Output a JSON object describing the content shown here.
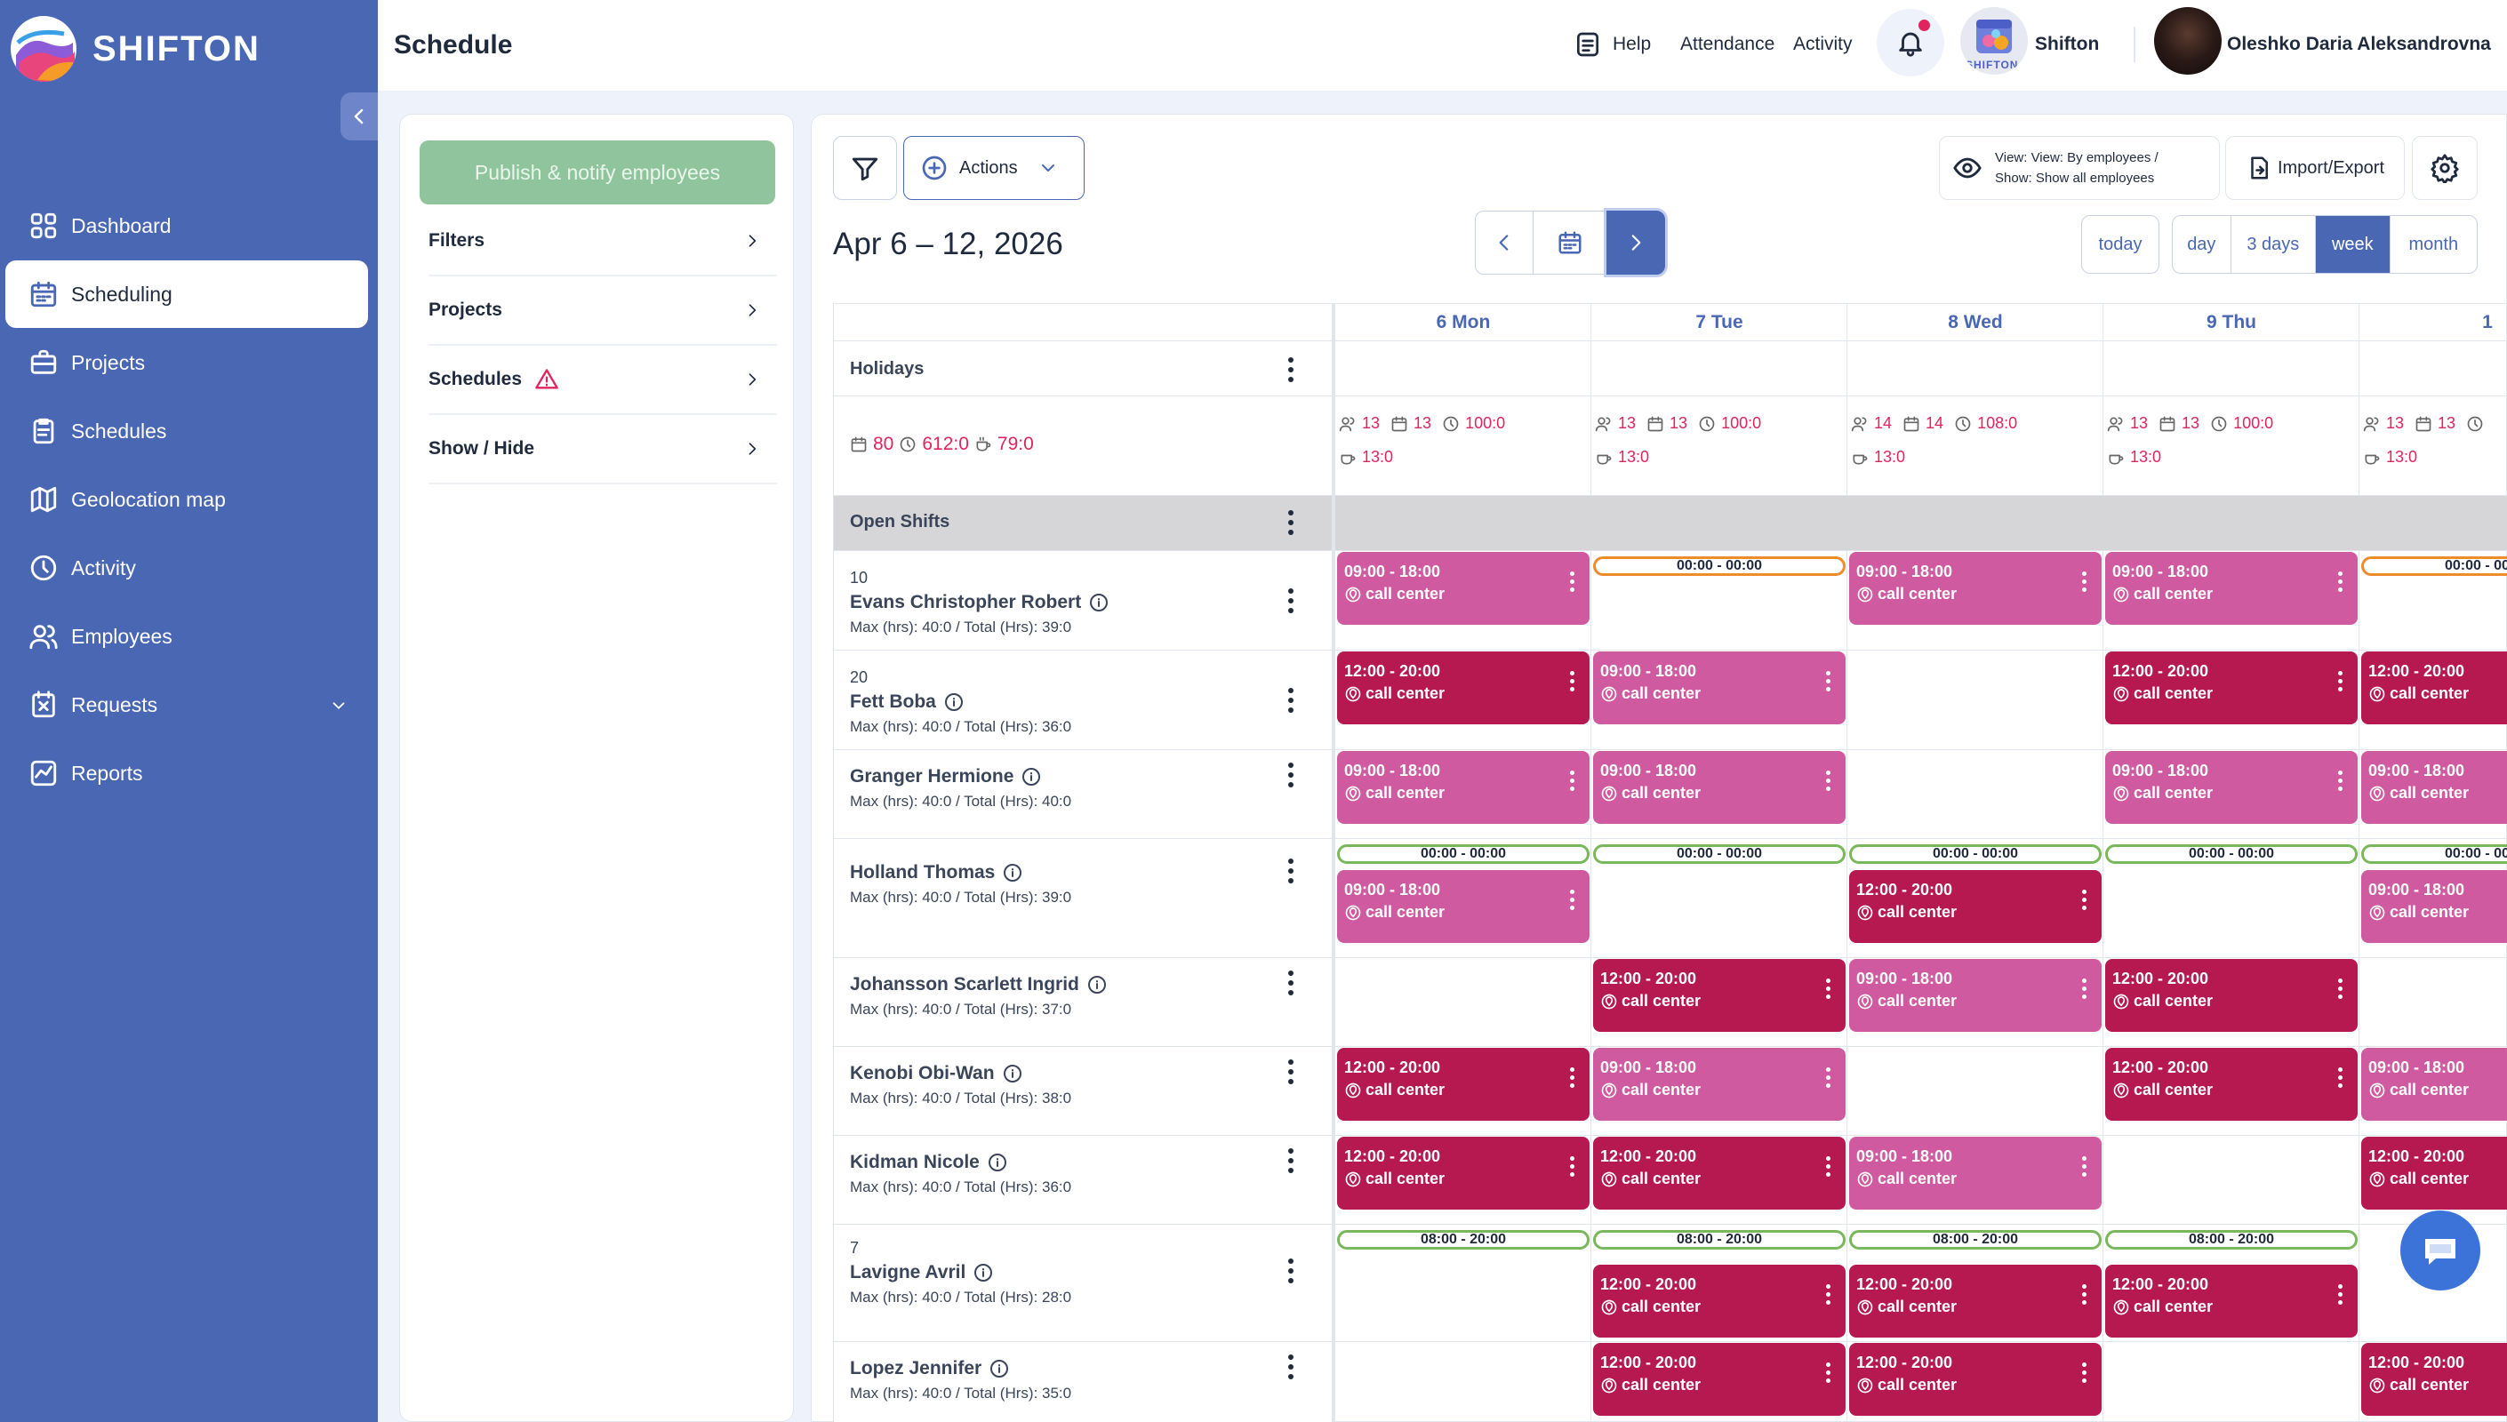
{
  "app": {
    "brand": "SHIFTON",
    "page_title": "Schedule"
  },
  "header": {
    "help": "Help",
    "attendance": "Attendance",
    "activity": "Activity",
    "company": "Shifton",
    "company_logo_text": "SHIFTON",
    "user": "Oleshko Daria Aleksandrovna"
  },
  "sidebar": {
    "items": [
      {
        "label": "Dashboard",
        "icon": "dashboard-icon"
      },
      {
        "label": "Scheduling",
        "icon": "calendar-icon",
        "active": true
      },
      {
        "label": "Projects",
        "icon": "briefcase-icon"
      },
      {
        "label": "Schedules",
        "icon": "clipboard-icon"
      },
      {
        "label": "Geolocation map",
        "icon": "map-icon"
      },
      {
        "label": "Activity",
        "icon": "clock-icon"
      },
      {
        "label": "Employees",
        "icon": "users-icon"
      },
      {
        "label": "Requests",
        "icon": "request-icon",
        "expandable": true
      },
      {
        "label": "Reports",
        "icon": "chart-icon"
      }
    ]
  },
  "left_panel": {
    "publish": "Publish & notify employees",
    "rows": [
      {
        "label": "Filters"
      },
      {
        "label": "Projects"
      },
      {
        "label": "Schedules",
        "warning": true
      },
      {
        "label": "Show / Hide"
      }
    ]
  },
  "toolbar": {
    "actions": "Actions",
    "view_line1": "View: View: By employees /",
    "view_line2": "Show: Show all employees",
    "import_export": "Import/Export"
  },
  "date_range": "Apr 6 – 12, 2026",
  "views": {
    "today": "today",
    "day": "day",
    "three_days": "3 days",
    "week": "week",
    "month": "month",
    "active": "week"
  },
  "grid": {
    "holidays": "Holidays",
    "summary": {
      "shifts": "80",
      "hours": "612:0",
      "breaks": "79:0"
    },
    "open_shifts": "Open Shifts",
    "days": [
      {
        "label": "6 Mon",
        "stats": {
          "people": "13",
          "shifts": "13",
          "hours": "100:0",
          "breaks": "13:0"
        }
      },
      {
        "label": "7 Tue",
        "stats": {
          "people": "13",
          "shifts": "13",
          "hours": "100:0",
          "breaks": "13:0"
        }
      },
      {
        "label": "8 Wed",
        "stats": {
          "people": "14",
          "shifts": "14",
          "hours": "108:0",
          "breaks": "13:0"
        }
      },
      {
        "label": "9 Thu",
        "stats": {
          "people": "13",
          "shifts": "13",
          "hours": "100:0",
          "breaks": "13:0"
        }
      },
      {
        "label": "1",
        "stats": {
          "people": "13",
          "shifts": "13",
          "hours": "",
          "breaks": "13:0"
        }
      }
    ],
    "employees": [
      {
        "num": "10",
        "name": "Evans Christopher Robert",
        "meta": "Max (hrs): 40:0 / Total (Hrs): 39:0"
      },
      {
        "num": "20",
        "name": "Fett Boba",
        "meta": "Max (hrs): 40:0 / Total (Hrs): 36:0"
      },
      {
        "num": "",
        "name": "Granger Hermione",
        "meta": "Max (hrs): 40:0 / Total (Hrs): 40:0"
      },
      {
        "num": "",
        "name": "Holland Thomas",
        "meta": "Max (hrs): 40:0 / Total (Hrs): 39:0"
      },
      {
        "num": "",
        "name": "Johansson Scarlett Ingrid",
        "meta": "Max (hrs): 40:0 / Total (Hrs): 37:0"
      },
      {
        "num": "",
        "name": "Kenobi Obi-Wan",
        "meta": "Max (hrs): 40:0 / Total (Hrs): 38:0"
      },
      {
        "num": "",
        "name": "Kidman Nicole",
        "meta": "Max (hrs): 40:0 / Total (Hrs): 36:0"
      },
      {
        "num": "7",
        "name": "Lavigne Avril",
        "meta": "Max (hrs): 40:0 / Total (Hrs): 28:0"
      },
      {
        "num": "",
        "name": "Lopez Jennifer",
        "meta": "Max (hrs): 40:0 / Total (Hrs): 35:0"
      }
    ],
    "shift_times": {
      "morning": "09:00 - 18:00",
      "evening": "12:00 - 20:00",
      "midnight": "00:00 - 00:00",
      "day_long": "08:00 - 20:00"
    },
    "location": "call center"
  },
  "colors": {
    "sidebar": "#4a67b4",
    "light_shift": "#d05a9f",
    "dark_shift": "#b5194f",
    "publish": "#8fc49c",
    "accent": "#4a67b4",
    "alert": "#e0245e"
  }
}
